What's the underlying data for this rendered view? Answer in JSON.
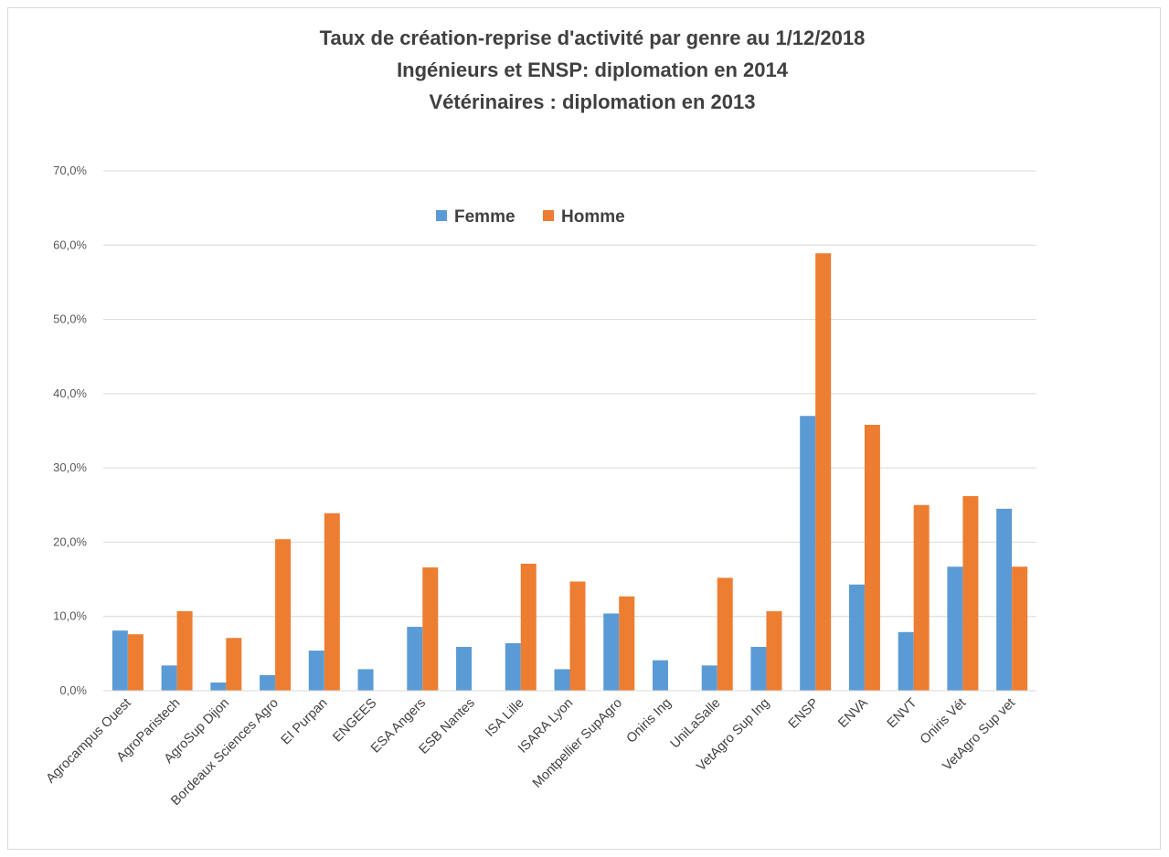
{
  "chart_data": {
    "type": "bar",
    "title_lines": [
      "Taux de création-reprise d'activité par genre au 1/12/2018",
      "Ingénieurs et ENSP: diplomation en 2014",
      "Vétérinaires : diplomation en 2013"
    ],
    "categories": [
      "Agrocampus Ouest",
      "AgroParistech",
      "AgroSup Dijon",
      "Bordeaux Sciences Agro",
      "EI Purpan",
      "ENGEES",
      "ESA Angers",
      "ESB Nantes",
      "ISA Lille",
      "ISARA Lyon",
      "Montpellier SupAgro",
      "Oniris Ing",
      "UniLaSalle",
      "VetAgro Sup Ing",
      "ENSP",
      "ENVA",
      "ENVT",
      "Oniris Vét",
      "VetAgro Sup vet"
    ],
    "series": [
      {
        "name": "Femme",
        "color": "#5b9bd5",
        "values": [
          8.1,
          3.4,
          1.1,
          2.1,
          5.4,
          2.9,
          8.6,
          5.9,
          6.4,
          2.9,
          10.4,
          4.1,
          3.4,
          5.9,
          37.0,
          14.3,
          7.9,
          16.7,
          24.5
        ]
      },
      {
        "name": "Homme",
        "color": "#ed7d31",
        "values": [
          7.6,
          10.7,
          7.1,
          20.4,
          23.9,
          0,
          16.6,
          0,
          17.1,
          14.7,
          12.7,
          0,
          15.2,
          10.7,
          58.9,
          35.8,
          25.0,
          26.2,
          16.7
        ]
      }
    ],
    "ylim": [
      0,
      70
    ],
    "yticks": [
      "0,0%",
      "10,0%",
      "20,0%",
      "30,0%",
      "40,0%",
      "50,0%",
      "60,0%",
      "70,0%"
    ],
    "grid": true,
    "legend_position": "top-center"
  }
}
